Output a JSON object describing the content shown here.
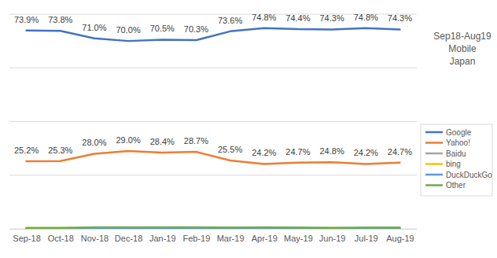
{
  "chart_data": {
    "type": "line",
    "annotations": [
      "Sep18-Aug19",
      "Mobile",
      "Japan"
    ],
    "categories": [
      "Sep-18",
      "Oct-18",
      "Nov-18",
      "Dec-18",
      "Jan-19",
      "Feb-19",
      "Mar-19",
      "Apr-19",
      "May-19",
      "Jun-19",
      "Jul-19",
      "Aug-19"
    ],
    "series": [
      {
        "name": "Google",
        "color": "#4472c4",
        "data_labels": true,
        "values": [
          73.9,
          73.8,
          71.0,
          70.0,
          70.5,
          70.3,
          73.6,
          74.8,
          74.4,
          74.3,
          74.8,
          74.3
        ],
        "value_labels": [
          "73.9%",
          "73.8%",
          "71.0%",
          "70.0%",
          "70.5%",
          "70.3%",
          "73.6%",
          "74.8%",
          "74.4%",
          "74.3%",
          "74.8%",
          "74.3%"
        ]
      },
      {
        "name": "Yahoo!",
        "color": "#ed7d31",
        "data_labels": true,
        "values": [
          25.2,
          25.3,
          28.0,
          29.0,
          28.4,
          28.7,
          25.5,
          24.2,
          24.7,
          24.8,
          24.2,
          24.7
        ],
        "value_labels": [
          "25.2%",
          "25.3%",
          "28.0%",
          "29.0%",
          "28.4%",
          "28.7%",
          "25.5%",
          "24.2%",
          "24.7%",
          "24.8%",
          "24.2%",
          "24.7%"
        ]
      },
      {
        "name": "Baidu",
        "color": "#a5a5a5",
        "data_labels": false,
        "values": [
          0.1,
          0.1,
          0.1,
          0.1,
          0.1,
          0.1,
          0.1,
          0.1,
          0.1,
          0.1,
          0.1,
          0.1
        ]
      },
      {
        "name": "bing",
        "color": "#ffc000",
        "data_labels": false,
        "values": [
          0.3,
          0.3,
          0.3,
          0.3,
          0.3,
          0.3,
          0.3,
          0.3,
          0.3,
          0.3,
          0.3,
          0.3
        ]
      },
      {
        "name": "DuckDuckGo",
        "color": "#5b9bd5",
        "data_labels": false,
        "values": [
          0.2,
          0.2,
          0.2,
          0.2,
          0.2,
          0.2,
          0.2,
          0.3,
          0.3,
          0.3,
          0.2,
          0.2
        ]
      },
      {
        "name": "Other",
        "color": "#70ad47",
        "data_labels": false,
        "values": [
          0.4,
          0.4,
          0.6,
          0.6,
          0.6,
          0.6,
          0.5,
          0.6,
          0.5,
          0.4,
          0.5,
          0.5
        ]
      }
    ],
    "ylim": [
      0,
      80
    ],
    "yticks": [
      0,
      20,
      40,
      60,
      80
    ],
    "grid": true,
    "tick_labels": "x",
    "legend": "right"
  }
}
